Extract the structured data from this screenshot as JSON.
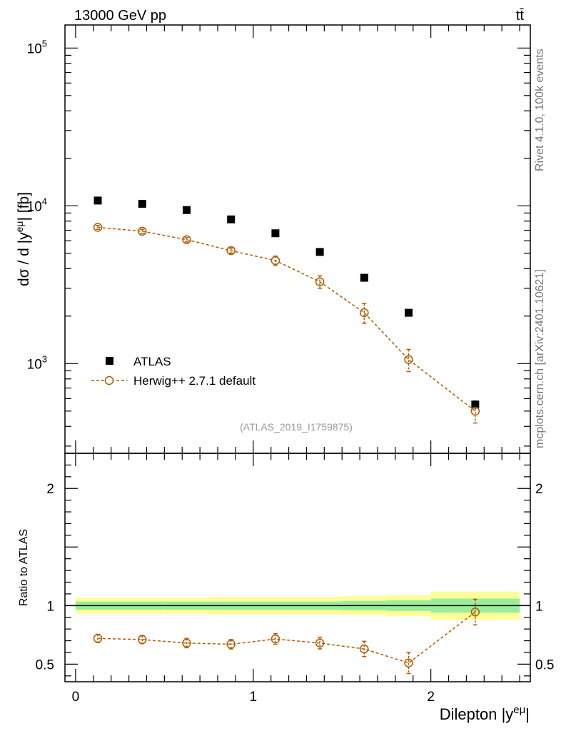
{
  "header": {
    "energy_label": "13000 GeV pp",
    "process_label": "tt̄"
  },
  "side_labels": {
    "rivet": "Rivet 4.1.0,  100k events",
    "mcplots": "mcplots.cern.ch [arXiv:2401.10621]"
  },
  "analysis_id": "(ATLAS_2019_I1759875)",
  "colors": {
    "data": "#000000",
    "mc": "#b35a00",
    "band_outer": "#ffff99",
    "band_inner": "#99ee99"
  },
  "chart_data": [
    {
      "type": "scatter",
      "title": "",
      "xlabel": "Dilepton |y^{eμ}|",
      "ylabel": "dσ / d |y^{eμ}| [fb]",
      "yscale": "log",
      "xlim": [
        -0.06,
        2.56
      ],
      "ylim": [
        270,
        140000
      ],
      "y_ticks": [
        {
          "exp": "3",
          "value": 1000
        },
        {
          "exp": "4",
          "value": 10000
        },
        {
          "exp": "5",
          "value": 100000
        }
      ],
      "x": [
        0.125,
        0.375,
        0.625,
        0.875,
        1.125,
        1.375,
        1.625,
        1.875,
        2.25
      ],
      "legend": {
        "position": "bottom-left",
        "entries": [
          "ATLAS",
          "Herwig++ 2.7.1 default"
        ]
      },
      "series": [
        {
          "name": "ATLAS",
          "marker": "square",
          "values": [
            10800,
            10300,
            9400,
            8200,
            6700,
            5100,
            3500,
            2100,
            550
          ]
        },
        {
          "name": "Herwig++ 2.7.1 default",
          "marker": "open-circle",
          "line": "dashed",
          "values": [
            7300,
            6900,
            6100,
            5200,
            4500,
            3300,
            2100,
            1060,
            500
          ],
          "err_low": [
            200,
            200,
            200,
            200,
            300,
            300,
            300,
            170,
            80
          ],
          "err_high": [
            200,
            200,
            200,
            200,
            300,
            300,
            300,
            170,
            80
          ]
        }
      ]
    },
    {
      "type": "scatter",
      "title": "",
      "xlabel": "Dilepton |y^{eμ}|",
      "ylabel": "Ratio to ATLAS",
      "yscale": "linear",
      "xlim": [
        -0.06,
        2.56
      ],
      "ylim": [
        0.35,
        2.3
      ],
      "x_ticks": [
        "0",
        "1",
        "2"
      ],
      "y_ticks": [
        "0.5",
        "1",
        "2"
      ],
      "reference_line": 1,
      "bins": [
        {
          "lo": 0.0,
          "hi": 0.25,
          "inner": 0.035,
          "outer": 0.07
        },
        {
          "lo": 0.25,
          "hi": 0.5,
          "inner": 0.035,
          "outer": 0.07
        },
        {
          "lo": 0.5,
          "hi": 0.75,
          "inner": 0.035,
          "outer": 0.07
        },
        {
          "lo": 0.75,
          "hi": 1.0,
          "inner": 0.035,
          "outer": 0.075
        },
        {
          "lo": 1.0,
          "hi": 1.25,
          "inner": 0.035,
          "outer": 0.075
        },
        {
          "lo": 1.25,
          "hi": 1.5,
          "inner": 0.035,
          "outer": 0.075
        },
        {
          "lo": 1.5,
          "hi": 1.75,
          "inner": 0.04,
          "outer": 0.08
        },
        {
          "lo": 1.75,
          "hi": 2.0,
          "inner": 0.045,
          "outer": 0.09
        },
        {
          "lo": 2.0,
          "hi": 2.5,
          "inner": 0.06,
          "outer": 0.12
        }
      ],
      "series": [
        {
          "name": "Herwig++ 2.7.1 default",
          "x": [
            0.125,
            0.375,
            0.625,
            0.875,
            1.125,
            1.375,
            1.625,
            1.875,
            2.25
          ],
          "values": [
            0.72,
            0.71,
            0.68,
            0.67,
            0.715,
            0.68,
            0.63,
            0.51,
            0.945
          ],
          "err_low": [
            0.035,
            0.035,
            0.04,
            0.04,
            0.045,
            0.05,
            0.065,
            0.09,
            0.11
          ],
          "err_high": [
            0.035,
            0.035,
            0.04,
            0.04,
            0.045,
            0.05,
            0.065,
            0.09,
            0.11
          ]
        }
      ]
    }
  ]
}
